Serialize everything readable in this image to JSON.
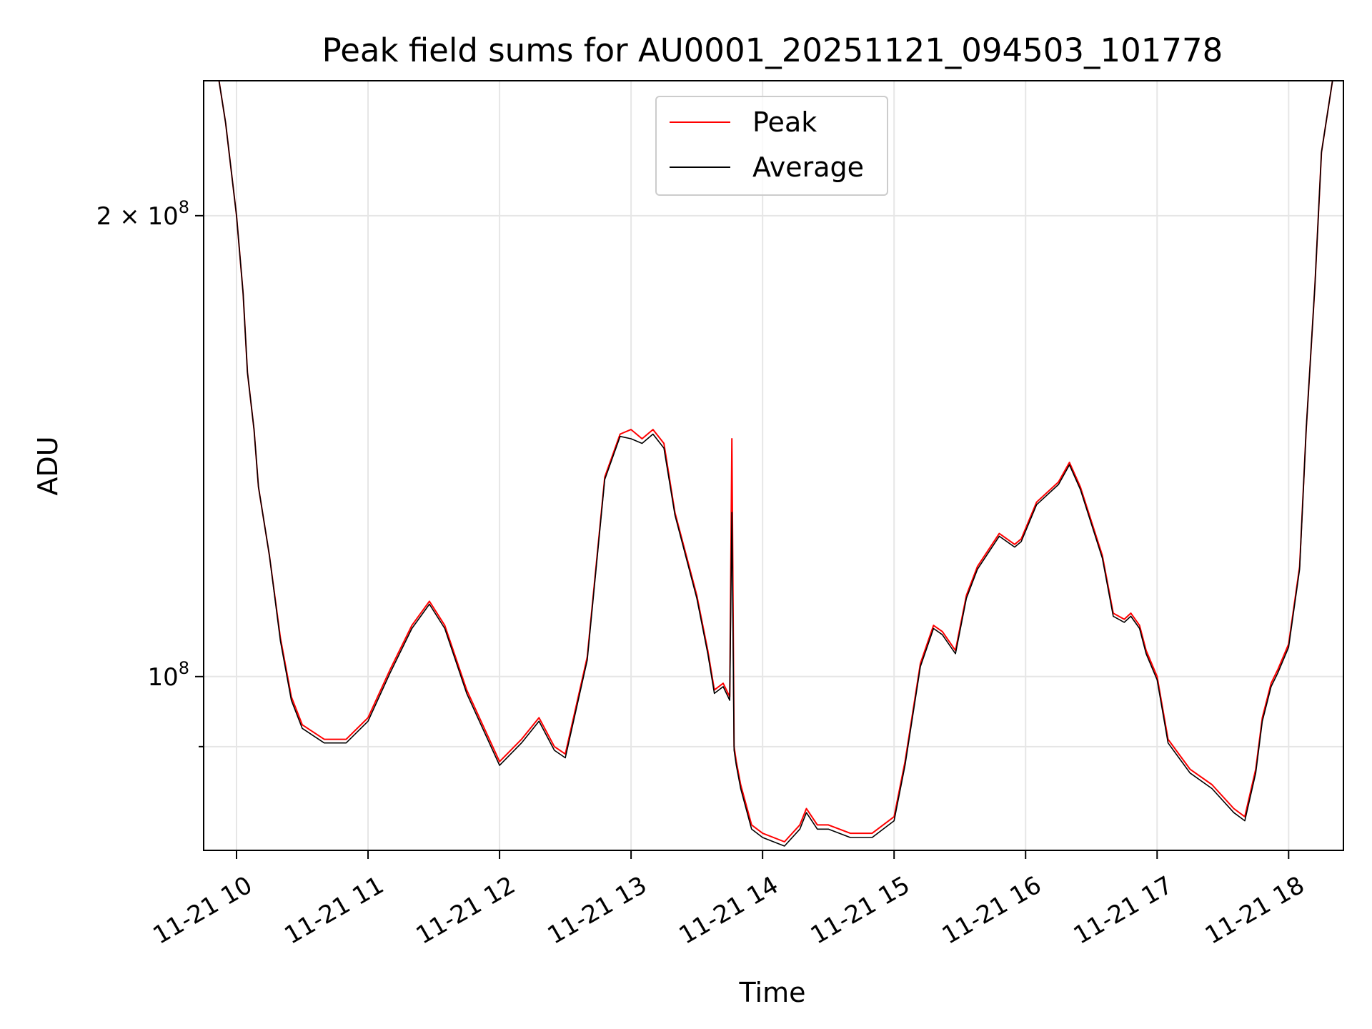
{
  "chart_data": {
    "type": "line",
    "title": "Peak field sums for AU0001_20251121_094503_101778",
    "xlabel": "Time",
    "ylabel": "ADU",
    "yscale": "log",
    "grid": true,
    "legend_position": "upper-center",
    "xlim": [
      "2025-11-21T09:45",
      "2025-11-21T18:25"
    ],
    "ylim": [
      77000000,
      245000000
    ],
    "x_ticks": [
      {
        "value": "2025-11-21T10:00",
        "label": "11-21 10"
      },
      {
        "value": "2025-11-21T11:00",
        "label": "11-21 11"
      },
      {
        "value": "2025-11-21T12:00",
        "label": "11-21 12"
      },
      {
        "value": "2025-11-21T13:00",
        "label": "11-21 13"
      },
      {
        "value": "2025-11-21T14:00",
        "label": "11-21 14"
      },
      {
        "value": "2025-11-21T15:00",
        "label": "11-21 15"
      },
      {
        "value": "2025-11-21T16:00",
        "label": "11-21 16"
      },
      {
        "value": "2025-11-21T17:00",
        "label": "11-21 17"
      },
      {
        "value": "2025-11-21T18:00",
        "label": "11-21 18"
      }
    ],
    "y_major_ticks": [
      {
        "value": 100000000,
        "base": "10",
        "exp": "8",
        "mantissa": ""
      },
      {
        "value": 200000000,
        "base": "10",
        "exp": "8",
        "mantissa": "2 × "
      }
    ],
    "y_minor_ticks": [
      90000000
    ],
    "series": [
      {
        "name": "Peak",
        "color": "#ff0000",
        "x": [
          "2025-11-21T09:52",
          "2025-11-21T09:55",
          "2025-11-21T10:00",
          "2025-11-21T10:03",
          "2025-11-21T10:05",
          "2025-11-21T10:08",
          "2025-11-21T10:10",
          "2025-11-21T10:15",
          "2025-11-21T10:20",
          "2025-11-21T10:25",
          "2025-11-21T10:30",
          "2025-11-21T10:40",
          "2025-11-21T10:50",
          "2025-11-21T11:00",
          "2025-11-21T11:10",
          "2025-11-21T11:20",
          "2025-11-21T11:28",
          "2025-11-21T11:35",
          "2025-11-21T11:45",
          "2025-11-21T12:00",
          "2025-11-21T12:10",
          "2025-11-21T12:18",
          "2025-11-21T12:25",
          "2025-11-21T12:30",
          "2025-11-21T12:40",
          "2025-11-21T12:48",
          "2025-11-21T12:55",
          "2025-11-21T13:00",
          "2025-11-21T13:05",
          "2025-11-21T13:10",
          "2025-11-21T13:15",
          "2025-11-21T13:20",
          "2025-11-21T13:30",
          "2025-11-21T13:35",
          "2025-11-21T13:38",
          "2025-11-21T13:42",
          "2025-11-21T13:45",
          "2025-11-21T13:46",
          "2025-11-21T13:47",
          "2025-11-21T13:48",
          "2025-11-21T13:50",
          "2025-11-21T13:55",
          "2025-11-21T14:00",
          "2025-11-21T14:10",
          "2025-11-21T14:17",
          "2025-11-21T14:20",
          "2025-11-21T14:25",
          "2025-11-21T14:30",
          "2025-11-21T14:40",
          "2025-11-21T14:50",
          "2025-11-21T15:00",
          "2025-11-21T15:05",
          "2025-11-21T15:12",
          "2025-11-21T15:18",
          "2025-11-21T15:22",
          "2025-11-21T15:28",
          "2025-11-21T15:33",
          "2025-11-21T15:38",
          "2025-11-21T15:48",
          "2025-11-21T15:55",
          "2025-11-21T15:58",
          "2025-11-21T16:05",
          "2025-11-21T16:15",
          "2025-11-21T16:20",
          "2025-11-21T16:25",
          "2025-11-21T16:35",
          "2025-11-21T16:40",
          "2025-11-21T16:45",
          "2025-11-21T16:48",
          "2025-11-21T16:52",
          "2025-11-21T16:55",
          "2025-11-21T17:00",
          "2025-11-21T17:05",
          "2025-11-21T17:15",
          "2025-11-21T17:25",
          "2025-11-21T17:35",
          "2025-11-21T17:40",
          "2025-11-21T17:45",
          "2025-11-21T17:48",
          "2025-11-21T17:52",
          "2025-11-21T17:55",
          "2025-11-21T18:00",
          "2025-11-21T18:05",
          "2025-11-21T18:08",
          "2025-11-21T18:12",
          "2025-11-21T18:15",
          "2025-11-21T18:20"
        ],
        "y": [
          245000000,
          230000000,
          200000000,
          178000000,
          158000000,
          145000000,
          133000000,
          120000000,
          106000000,
          97000000,
          93000000,
          91000000,
          91000000,
          94000000,
          101000000,
          108000000,
          112000000,
          108000000,
          98000000,
          88000000,
          91000000,
          94000000,
          90000000,
          89000000,
          103000000,
          135000000,
          144000000,
          145000000,
          143000000,
          145000000,
          142000000,
          128000000,
          113000000,
          104000000,
          98000000,
          99000000,
          97000000,
          143000000,
          90000000,
          88000000,
          85000000,
          80000000,
          79000000,
          78000000,
          80000000,
          82000000,
          80000000,
          80000000,
          79000000,
          79000000,
          81000000,
          88000000,
          102000000,
          108000000,
          107000000,
          104000000,
          113000000,
          118000000,
          124000000,
          122000000,
          123000000,
          130000000,
          134000000,
          138000000,
          133000000,
          120000000,
          110000000,
          109000000,
          110000000,
          108000000,
          104000000,
          100000000,
          91000000,
          87000000,
          85000000,
          82000000,
          81000000,
          87000000,
          94000000,
          99000000,
          101000000,
          105000000,
          118000000,
          145000000,
          180000000,
          220000000,
          245000000
        ]
      },
      {
        "name": "Average",
        "color": "#000000",
        "x": [
          "2025-11-21T09:52",
          "2025-11-21T09:55",
          "2025-11-21T10:00",
          "2025-11-21T10:03",
          "2025-11-21T10:05",
          "2025-11-21T10:08",
          "2025-11-21T10:10",
          "2025-11-21T10:15",
          "2025-11-21T10:20",
          "2025-11-21T10:25",
          "2025-11-21T10:30",
          "2025-11-21T10:40",
          "2025-11-21T10:50",
          "2025-11-21T11:00",
          "2025-11-21T11:10",
          "2025-11-21T11:20",
          "2025-11-21T11:28",
          "2025-11-21T11:35",
          "2025-11-21T11:45",
          "2025-11-21T12:00",
          "2025-11-21T12:10",
          "2025-11-21T12:18",
          "2025-11-21T12:25",
          "2025-11-21T12:30",
          "2025-11-21T12:40",
          "2025-11-21T12:48",
          "2025-11-21T12:55",
          "2025-11-21T13:00",
          "2025-11-21T13:05",
          "2025-11-21T13:10",
          "2025-11-21T13:15",
          "2025-11-21T13:20",
          "2025-11-21T13:30",
          "2025-11-21T13:35",
          "2025-11-21T13:38",
          "2025-11-21T13:42",
          "2025-11-21T13:45",
          "2025-11-21T13:46",
          "2025-11-21T13:47",
          "2025-11-21T13:48",
          "2025-11-21T13:50",
          "2025-11-21T13:55",
          "2025-11-21T14:00",
          "2025-11-21T14:10",
          "2025-11-21T14:17",
          "2025-11-21T14:20",
          "2025-11-21T14:25",
          "2025-11-21T14:30",
          "2025-11-21T14:40",
          "2025-11-21T14:50",
          "2025-11-21T15:00",
          "2025-11-21T15:05",
          "2025-11-21T15:12",
          "2025-11-21T15:18",
          "2025-11-21T15:22",
          "2025-11-21T15:28",
          "2025-11-21T15:33",
          "2025-11-21T15:38",
          "2025-11-21T15:48",
          "2025-11-21T15:55",
          "2025-11-21T15:58",
          "2025-11-21T16:05",
          "2025-11-21T16:15",
          "2025-11-21T16:20",
          "2025-11-21T16:25",
          "2025-11-21T16:35",
          "2025-11-21T16:40",
          "2025-11-21T16:45",
          "2025-11-21T16:48",
          "2025-11-21T16:52",
          "2025-11-21T16:55",
          "2025-11-21T17:00",
          "2025-11-21T17:05",
          "2025-11-21T17:15",
          "2025-11-21T17:25",
          "2025-11-21T17:35",
          "2025-11-21T17:40",
          "2025-11-21T17:45",
          "2025-11-21T17:48",
          "2025-11-21T17:52",
          "2025-11-21T17:55",
          "2025-11-21T18:00",
          "2025-11-21T18:05",
          "2025-11-21T18:08",
          "2025-11-21T18:12",
          "2025-11-21T18:15",
          "2025-11-21T18:20"
        ],
        "y": [
          245000000,
          230000000,
          200000000,
          178000000,
          158000000,
          145000000,
          133000000,
          120000000,
          105500000,
          96500000,
          92500000,
          90500000,
          90500000,
          93500000,
          100500000,
          107500000,
          111500000,
          107500000,
          97500000,
          87500000,
          90500000,
          93500000,
          89500000,
          88500000,
          102500000,
          134500000,
          143500000,
          143000000,
          142000000,
          144000000,
          141000000,
          127500000,
          112500000,
          103500000,
          97500000,
          98500000,
          96500000,
          128000000,
          89500000,
          87500000,
          84500000,
          79500000,
          78500000,
          77500000,
          79500000,
          81500000,
          79500000,
          79500000,
          78500000,
          78500000,
          80500000,
          87500000,
          101500000,
          107500000,
          106500000,
          103500000,
          112500000,
          117500000,
          123500000,
          121500000,
          122500000,
          129500000,
          133500000,
          137500000,
          132500000,
          119500000,
          109500000,
          108500000,
          109500000,
          107500000,
          103500000,
          99500000,
          90500000,
          86500000,
          84500000,
          81500000,
          80500000,
          86500000,
          93500000,
          98500000,
          100500000,
          104500000,
          117500000,
          145000000,
          180000000,
          220000000,
          245000000
        ]
      }
    ]
  }
}
